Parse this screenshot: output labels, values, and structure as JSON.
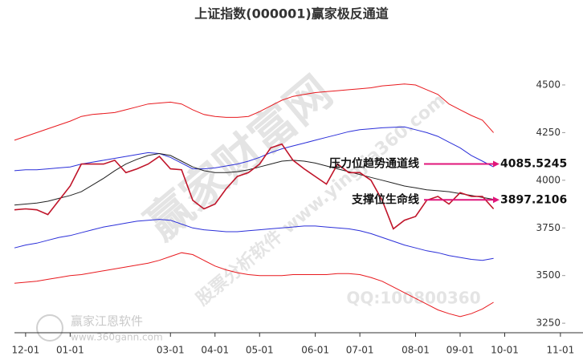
{
  "chart_data": {
    "type": "line",
    "title": "上证指数(000001)赢家极反通道",
    "categories": [
      "",
      "12-01",
      null,
      null,
      null,
      "01-01",
      null,
      null,
      null,
      null,
      null,
      null,
      null,
      null,
      "03-01",
      null,
      null,
      null,
      "04-01",
      null,
      null,
      null,
      "05-01",
      null,
      null,
      null,
      null,
      "06-01",
      null,
      null,
      null,
      "07-01",
      null,
      null,
      null,
      null,
      "08-01",
      null,
      null,
      null,
      "09-01",
      null,
      null,
      null,
      "10-01",
      null,
      null,
      null,
      null,
      "11-01"
    ],
    "ylim": [
      3200,
      4870
    ],
    "yticks": [
      3250,
      3500,
      3750,
      4000,
      4250,
      4500
    ],
    "series": [
      {
        "color": "#e8191e",
        "values": [
          4210,
          4230,
          4250,
          4270,
          4290,
          4310,
          4335,
          4345,
          4350,
          4355,
          4370,
          4385,
          4400,
          4405,
          4410,
          4400,
          4370,
          4345,
          4335,
          4330,
          4330,
          4335,
          4360,
          4390,
          4420,
          4440,
          4450,
          4460,
          4465,
          4470,
          4475,
          4480,
          4485,
          4495,
          4500,
          4505,
          4500,
          4475,
          4450,
          4400,
          4370,
          4340,
          4315,
          4250,
          null,
          null,
          null,
          null,
          null,
          null
        ]
      },
      {
        "color": "#2b2fd9",
        "values": [
          4050,
          4055,
          4055,
          4060,
          4065,
          4070,
          4085,
          4095,
          4105,
          4115,
          4125,
          4135,
          4145,
          4140,
          4120,
          4090,
          4060,
          4060,
          4065,
          4075,
          4085,
          4100,
          4120,
          4145,
          4165,
          4180,
          4195,
          4210,
          4225,
          4240,
          4255,
          4265,
          4270,
          4275,
          4278,
          4280,
          4265,
          4250,
          4230,
          4200,
          4170,
          4130,
          4100,
          4070,
          null,
          null,
          null,
          null,
          null,
          null
        ]
      },
      {
        "color": "#222222",
        "values": [
          3870,
          3875,
          3880,
          3890,
          3905,
          3920,
          3940,
          3975,
          4010,
          4050,
          4085,
          4110,
          4130,
          4140,
          4130,
          4100,
          4070,
          4050,
          4040,
          4040,
          4045,
          4055,
          4070,
          4085,
          4100,
          4105,
          4100,
          4090,
          4075,
          4060,
          4045,
          4030,
          4015,
          4000,
          3985,
          3970,
          3960,
          3950,
          3945,
          3940,
          3930,
          3920,
          3910,
          3900,
          null,
          null,
          null,
          null,
          null,
          null
        ]
      },
      {
        "color": "#2b2fd9",
        "values": [
          3645,
          3660,
          3670,
          3685,
          3700,
          3710,
          3725,
          3740,
          3755,
          3765,
          3775,
          3785,
          3790,
          3795,
          3790,
          3770,
          3750,
          3740,
          3735,
          3730,
          3730,
          3735,
          3740,
          3745,
          3750,
          3755,
          3760,
          3760,
          3755,
          3750,
          3745,
          3735,
          3720,
          3700,
          3680,
          3660,
          3645,
          3630,
          3620,
          3605,
          3595,
          3585,
          3580,
          3590,
          null,
          null,
          null,
          null,
          null,
          null
        ]
      },
      {
        "color": "#e8191e",
        "values": [
          3460,
          3465,
          3470,
          3480,
          3490,
          3500,
          3505,
          3515,
          3525,
          3535,
          3545,
          3555,
          3565,
          3580,
          3600,
          3620,
          3610,
          3580,
          3550,
          3530,
          3515,
          3505,
          3500,
          3500,
          3500,
          3505,
          3505,
          3505,
          3505,
          3510,
          3510,
          3505,
          3490,
          3470,
          3440,
          3410,
          3380,
          3350,
          3320,
          3300,
          3285,
          3300,
          3325,
          3360,
          null,
          null,
          null,
          null,
          null,
          null
        ]
      },
      {
        "color": "#c0152a",
        "values": [
          3845,
          3850,
          3845,
          3820,
          3895,
          3970,
          4085,
          4085,
          4085,
          4105,
          4040,
          4060,
          4085,
          4125,
          4060,
          4055,
          3895,
          3850,
          3875,
          3955,
          4020,
          4040,
          4085,
          4170,
          4190,
          4105,
          4060,
          4020,
          3980,
          4085,
          4040,
          4040,
          4000,
          3895,
          3745,
          3790,
          3810,
          3895,
          3915,
          3875,
          3935,
          3915,
          3915,
          3850,
          null,
          null,
          null,
          null,
          null,
          null
        ]
      }
    ],
    "annotations": [
      {
        "text": "压力位趋势通道线",
        "value": 4085.5245
      },
      {
        "text": "支撑位生命线",
        "value": 3897.2106
      }
    ],
    "watermarks": [
      "赢家财富网",
      "股票分析软件 www.yingjia360.com",
      "赢家江恩软件",
      "www.360gann.com",
      "QQ:100800360"
    ]
  }
}
